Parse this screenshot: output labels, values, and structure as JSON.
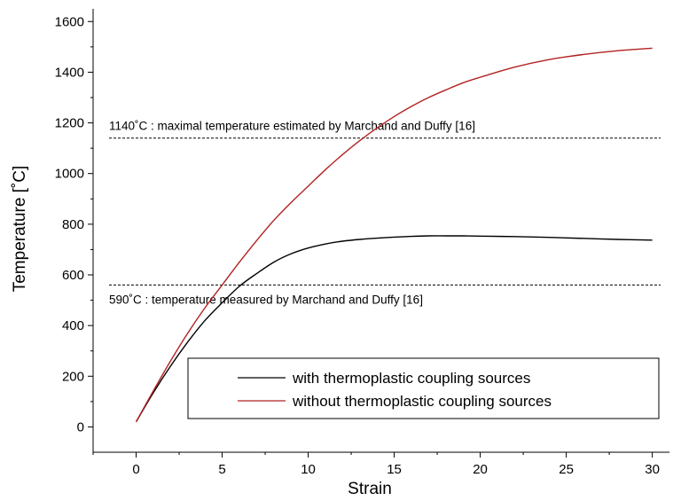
{
  "chart_data": {
    "type": "line",
    "xlabel": "Strain",
    "ylabel": "Temperature [˚C]",
    "xlim": [
      -2.5,
      31
    ],
    "ylim": [
      -100,
      1650
    ],
    "x_ticks": [
      "0",
      "5",
      "10",
      "15",
      "20",
      "25",
      "30"
    ],
    "y_ticks": [
      "0",
      "200",
      "400",
      "600",
      "800",
      "1000",
      "1200",
      "1400",
      "1600"
    ],
    "grid": false,
    "legend_position": "bottom-right",
    "series": [
      {
        "name": "with thermoplastic coupling sources",
        "color": "#000000",
        "x": [
          0,
          1,
          2,
          3,
          4,
          5,
          6,
          7,
          8,
          9,
          10,
          11,
          12,
          13,
          14,
          15,
          16,
          17,
          18,
          19,
          20,
          22,
          24,
          26,
          28,
          30
        ],
        "y": [
          20,
          135,
          240,
          335,
          420,
          490,
          555,
          605,
          650,
          683,
          706,
          722,
          733,
          740,
          745,
          749,
          752,
          754,
          754,
          754,
          753,
          751,
          748,
          744,
          740,
          737
        ]
      },
      {
        "name": "without thermoplastic coupling sources",
        "color": "#b22222",
        "x": [
          0,
          1,
          2,
          3,
          4,
          5,
          6,
          7,
          8,
          9,
          10,
          11,
          12,
          13,
          14,
          15,
          16,
          17,
          18,
          19,
          20,
          22,
          24,
          26,
          28,
          30
        ],
        "y": [
          20,
          142,
          260,
          370,
          470,
          560,
          650,
          735,
          815,
          885,
          950,
          1015,
          1075,
          1130,
          1180,
          1225,
          1265,
          1300,
          1330,
          1358,
          1380,
          1420,
          1450,
          1470,
          1485,
          1495
        ]
      }
    ],
    "annotations": [
      {
        "text": "1140˚C : maximal temperature estimated by Marchand and Duffy [16]",
        "y": 1140
      },
      {
        "text": "590˚C : temperature measured by Marchand and Duffy [16]",
        "y": 560
      }
    ]
  }
}
